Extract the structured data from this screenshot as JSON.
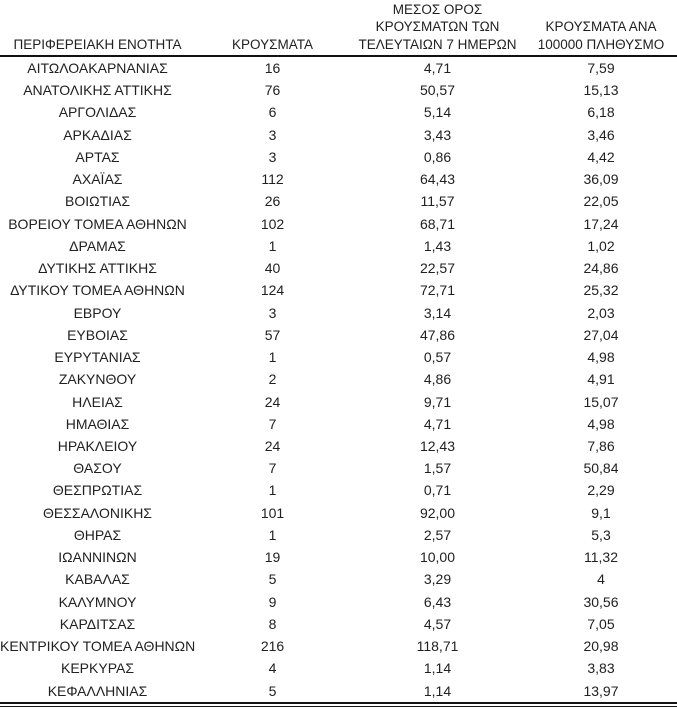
{
  "colors": {
    "text": "#212121",
    "border": "#141414",
    "background": "#ffffff"
  },
  "table": {
    "headers": {
      "region": "ΠΕΡΙΦΕΡΕΙΑΚΗ ΕΝΟΤΗΤΑ",
      "cases": "ΚΡΟΥΣΜΑΤΑ",
      "avg7day": "ΜΕΣΟΣ ΟΡΟΣ\nΚΡΟΥΣΜΑΤΩΝ ΤΩΝ\nΤΕΛΕΥΤΑΙΩΝ 7 ΗΜΕΡΩΝ",
      "per100k": "ΚΡΟΥΣΜΑΤΑ ΑΝΑ\n100000 ΠΛΗΘΥΣΜΟ"
    },
    "rows": [
      {
        "region": "ΑΙΤΩΛΟΑΚΑΡΝΑΝΙΑΣ",
        "cases": "16",
        "avg7day": "4,71",
        "per100k": "7,59"
      },
      {
        "region": "ΑΝΑΤΟΛΙΚΗΣ ΑΤΤΙΚΗΣ",
        "cases": "76",
        "avg7day": "50,57",
        "per100k": "15,13"
      },
      {
        "region": "ΑΡΓΟΛΙΔΑΣ",
        "cases": "6",
        "avg7day": "5,14",
        "per100k": "6,18"
      },
      {
        "region": "ΑΡΚΑΔΙΑΣ",
        "cases": "3",
        "avg7day": "3,43",
        "per100k": "3,46"
      },
      {
        "region": "ΑΡΤΑΣ",
        "cases": "3",
        "avg7day": "0,86",
        "per100k": "4,42"
      },
      {
        "region": "ΑΧΑΪΑΣ",
        "cases": "112",
        "avg7day": "64,43",
        "per100k": "36,09"
      },
      {
        "region": "ΒΟΙΩΤΙΑΣ",
        "cases": "26",
        "avg7day": "11,57",
        "per100k": "22,05"
      },
      {
        "region": "ΒΟΡΕΙΟΥ ΤΟΜΕΑ ΑΘΗΝΩΝ",
        "cases": "102",
        "avg7day": "68,71",
        "per100k": "17,24"
      },
      {
        "region": "ΔΡΑΜΑΣ",
        "cases": "1",
        "avg7day": "1,43",
        "per100k": "1,02"
      },
      {
        "region": "ΔΥΤΙΚΗΣ ΑΤΤΙΚΗΣ",
        "cases": "40",
        "avg7day": "22,57",
        "per100k": "24,86"
      },
      {
        "region": "ΔΥΤΙΚΟΥ ΤΟΜΕΑ ΑΘΗΝΩΝ",
        "cases": "124",
        "avg7day": "72,71",
        "per100k": "25,32"
      },
      {
        "region": "ΕΒΡΟΥ",
        "cases": "3",
        "avg7day": "3,14",
        "per100k": "2,03"
      },
      {
        "region": "ΕΥΒΟΙΑΣ",
        "cases": "57",
        "avg7day": "47,86",
        "per100k": "27,04"
      },
      {
        "region": "ΕΥΡΥΤΑΝΙΑΣ",
        "cases": "1",
        "avg7day": "0,57",
        "per100k": "4,98"
      },
      {
        "region": "ΖΑΚΥΝΘΟΥ",
        "cases": "2",
        "avg7day": "4,86",
        "per100k": "4,91"
      },
      {
        "region": "ΗΛΕΙΑΣ",
        "cases": "24",
        "avg7day": "9,71",
        "per100k": "15,07"
      },
      {
        "region": "ΗΜΑΘΙΑΣ",
        "cases": "7",
        "avg7day": "4,71",
        "per100k": "4,98"
      },
      {
        "region": "ΗΡΑΚΛΕΙΟΥ",
        "cases": "24",
        "avg7day": "12,43",
        "per100k": "7,86"
      },
      {
        "region": "ΘΑΣΟΥ",
        "cases": "7",
        "avg7day": "1,57",
        "per100k": "50,84"
      },
      {
        "region": "ΘΕΣΠΡΩΤΙΑΣ",
        "cases": "1",
        "avg7day": "0,71",
        "per100k": "2,29"
      },
      {
        "region": "ΘΕΣΣΑΛΟΝΙΚΗΣ",
        "cases": "101",
        "avg7day": "92,00",
        "per100k": "9,1"
      },
      {
        "region": "ΘΗΡΑΣ",
        "cases": "1",
        "avg7day": "2,57",
        "per100k": "5,3"
      },
      {
        "region": "ΙΩΑΝΝΙΝΩΝ",
        "cases": "19",
        "avg7day": "10,00",
        "per100k": "11,32"
      },
      {
        "region": "ΚΑΒΑΛΑΣ",
        "cases": "5",
        "avg7day": "3,29",
        "per100k": "4"
      },
      {
        "region": "ΚΑΛΥΜΝΟΥ",
        "cases": "9",
        "avg7day": "6,43",
        "per100k": "30,56"
      },
      {
        "region": "ΚΑΡΔΙΤΣΑΣ",
        "cases": "8",
        "avg7day": "4,57",
        "per100k": "7,05"
      },
      {
        "region": "ΚΕΝΤΡΙΚΟΥ ΤΟΜΕΑ ΑΘΗΝΩΝ",
        "cases": "216",
        "avg7day": "118,71",
        "per100k": "20,98"
      },
      {
        "region": "ΚΕΡΚΥΡΑΣ",
        "cases": "4",
        "avg7day": "1,14",
        "per100k": "3,83"
      },
      {
        "region": "ΚΕΦΑΛΛΗΝΙΑΣ",
        "cases": "5",
        "avg7day": "1,14",
        "per100k": "13,97"
      }
    ]
  }
}
